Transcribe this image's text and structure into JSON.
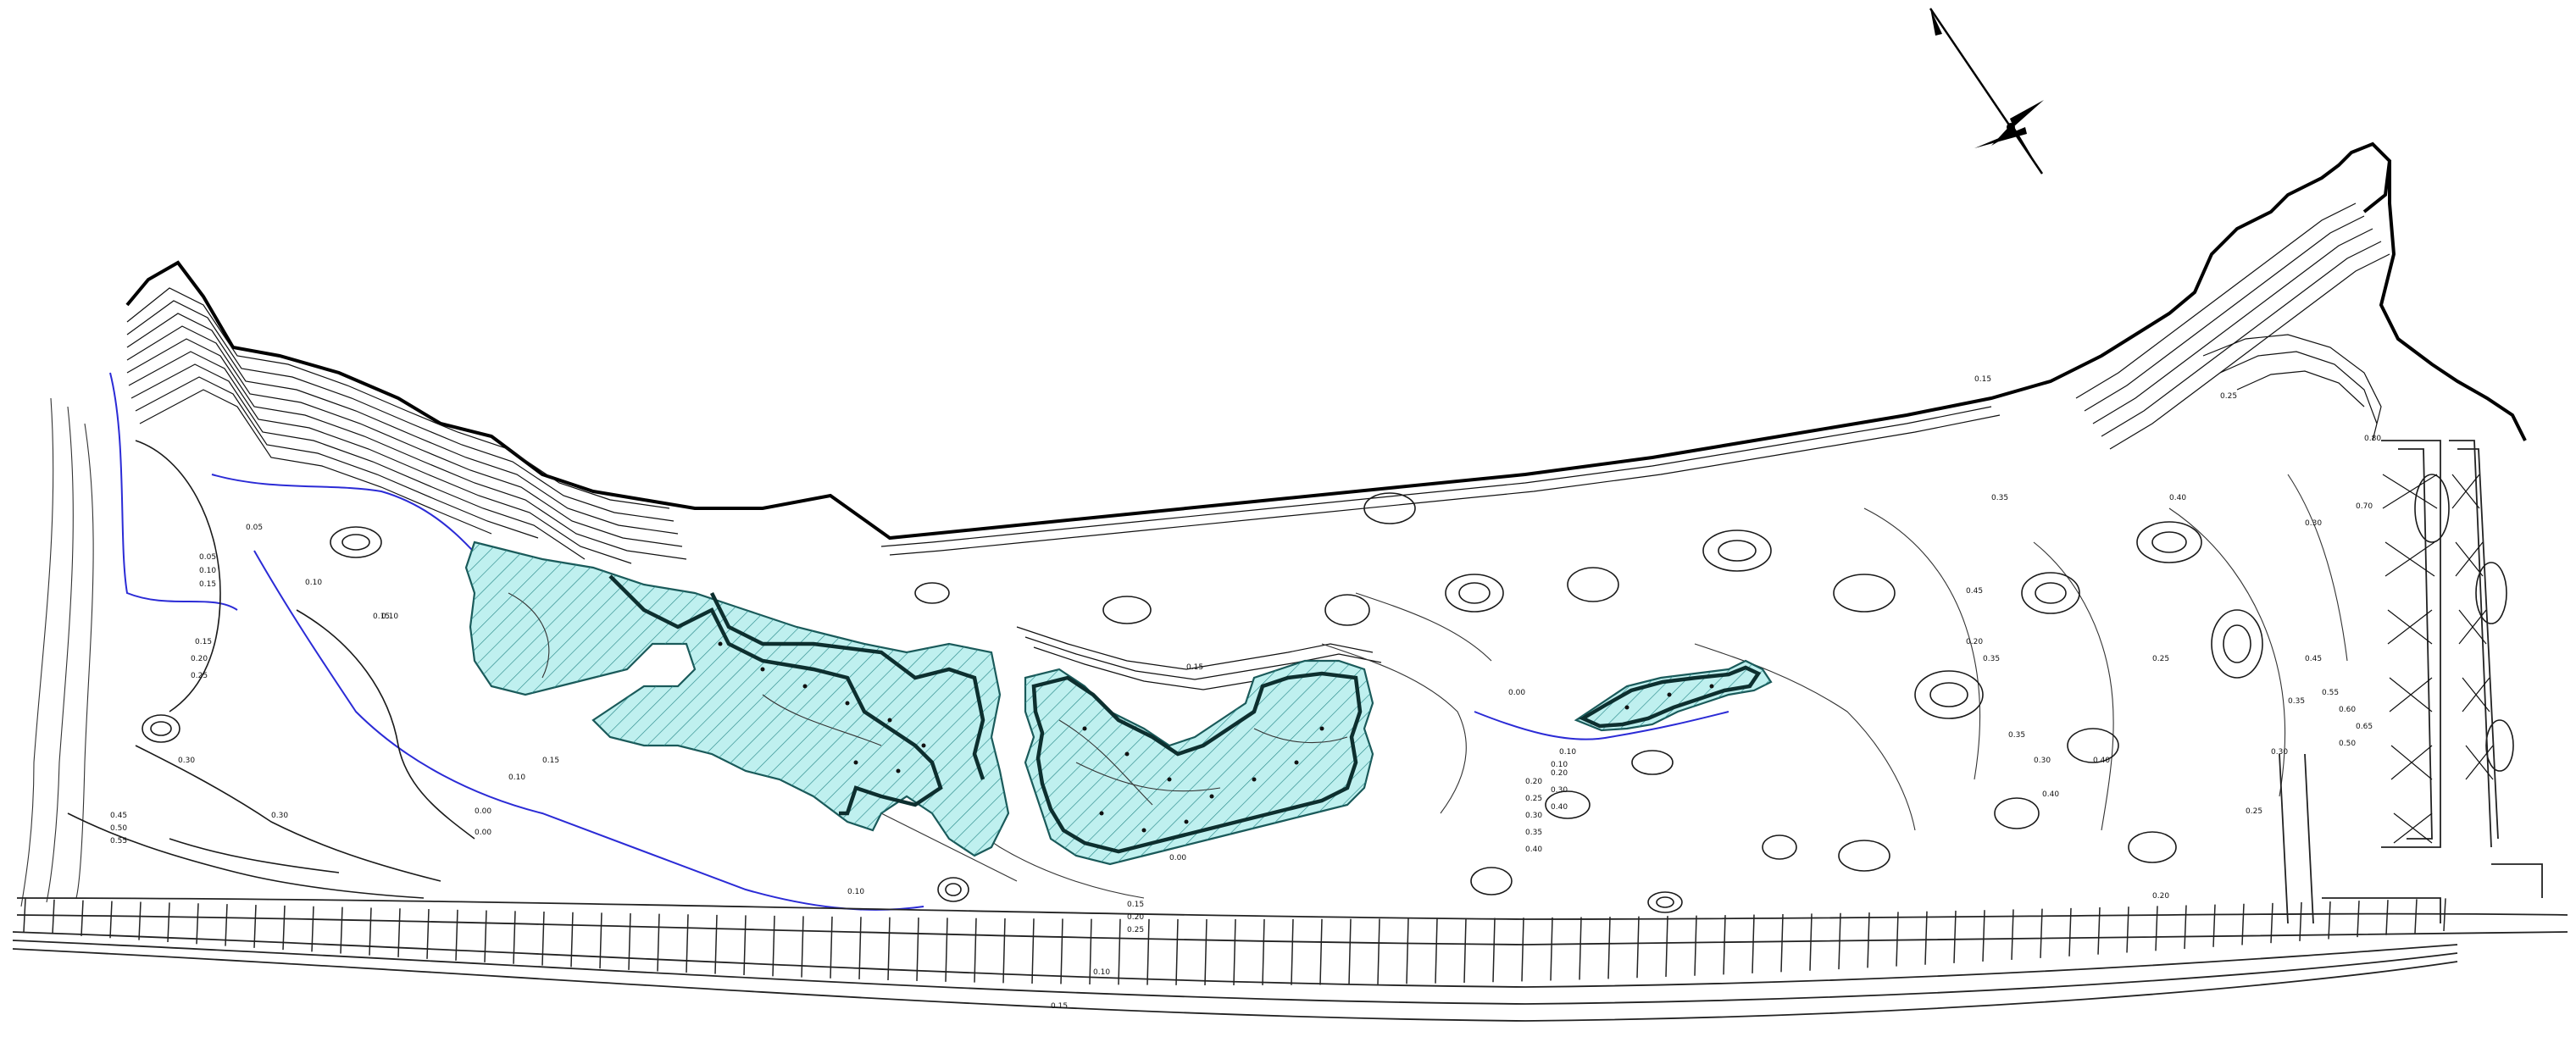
{
  "map": {
    "type": "topographic contour plan",
    "colors": {
      "contour": "#1a1a1a",
      "coast": "#000000",
      "zero_line": "#2b2bd6",
      "water_fill": "#bff0ef",
      "water_edge": "#0d2f2f"
    },
    "icons": [
      "north-arrow-icon"
    ],
    "contour_labels": [
      "0.05",
      "0.10",
      "0.15",
      "0.05",
      "0.10",
      "0.15",
      "0.15",
      "0.20",
      "0.25",
      "0.30",
      "0.45",
      "0.50",
      "0.55",
      "0.30",
      "0.00",
      "0.00",
      "0.10",
      "0.10",
      "0.15",
      "0.10",
      "0.15",
      "0.20",
      "0.25",
      "0.00",
      "0.10",
      "0.15",
      "0.15",
      "0.10",
      "0.20",
      "0.25",
      "0.30",
      "0.35",
      "0.40",
      "0.00",
      "0.10",
      "0.20",
      "0.30",
      "0.40",
      "0.15",
      "0.25",
      "0.35",
      "0.45",
      "0.40",
      "0.30",
      "0.20",
      "0.35",
      "0.25",
      "0.30",
      "0.40",
      "0.35",
      "0.40",
      "0.20",
      "0.30",
      "0.25",
      "0.35",
      "0.45",
      "0.55",
      "0.60",
      "0.65",
      "0.70",
      "0.80",
      "0.50"
    ]
  }
}
